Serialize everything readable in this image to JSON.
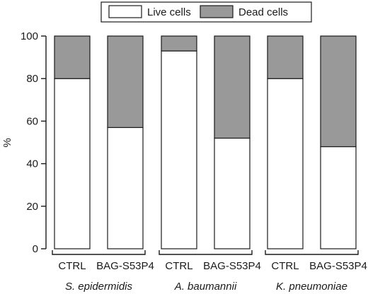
{
  "chart_data": {
    "type": "bar",
    "stacked": true,
    "title": "",
    "xlabel": "",
    "ylabel": "%",
    "ylim": [
      0,
      100
    ],
    "yticks": [
      0,
      20,
      40,
      60,
      80,
      100
    ],
    "grid": false,
    "legend_position": "top",
    "categories": [
      "CTRL",
      "BAG-S53P4",
      "CTRL",
      "BAG-S53P4",
      "CTRL",
      "BAG-S53P4"
    ],
    "groups": [
      {
        "label": "S. epidermidis",
        "categories": [
          0,
          1
        ]
      },
      {
        "label": "A. baumannii",
        "categories": [
          2,
          3
        ]
      },
      {
        "label": "K. pneumoniae",
        "categories": [
          4,
          5
        ]
      }
    ],
    "series": [
      {
        "name": "Live cells",
        "color": "#ffffff",
        "values": [
          80,
          57,
          93,
          52,
          80,
          48
        ]
      },
      {
        "name": "Dead cells",
        "color": "#999999",
        "values": [
          20,
          43,
          7,
          48,
          20,
          52
        ]
      }
    ]
  }
}
